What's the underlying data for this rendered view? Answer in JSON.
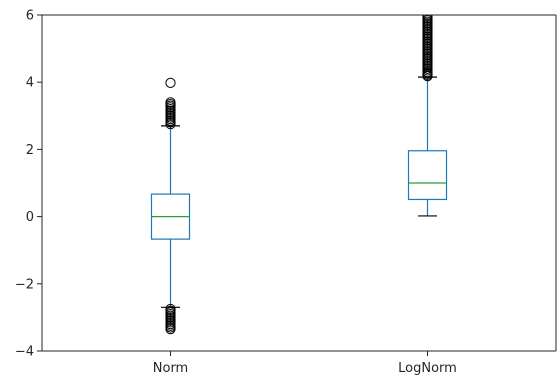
{
  "chart_data": {
    "type": "box",
    "title": "",
    "xlabel": "",
    "ylabel": "",
    "ylim": [
      -4,
      6
    ],
    "yticks": [
      -4,
      -2,
      0,
      2,
      4,
      6
    ],
    "ytick_labels": [
      "−4",
      "−2",
      "0",
      "2",
      "4",
      "6"
    ],
    "categories": [
      "Norm",
      "LogNorm"
    ],
    "boxes": [
      {
        "name": "Norm",
        "whisker_low": -2.7,
        "q1": -0.67,
        "median": 0.0,
        "q3": 0.67,
        "whisker_high": 2.7,
        "outliers": [
          -3.35,
          -3.3,
          -3.25,
          -3.2,
          -3.15,
          -3.1,
          -3.05,
          -3.0,
          -2.95,
          -2.9,
          -2.85,
          -2.8,
          -2.75,
          2.75,
          2.8,
          2.85,
          2.9,
          2.95,
          3.0,
          3.05,
          3.1,
          3.15,
          3.2,
          3.25,
          3.3,
          3.35,
          3.4,
          3.98
        ]
      },
      {
        "name": "LogNorm",
        "whisker_low": 0.02,
        "q1": 0.51,
        "median": 1.0,
        "q3": 1.96,
        "whisker_high": 4.15,
        "outliers": [
          4.18,
          4.22,
          4.26,
          4.3,
          4.35,
          4.4,
          4.45,
          4.5,
          4.55,
          4.6,
          4.65,
          4.7,
          4.75,
          4.8,
          4.85,
          4.9,
          4.95,
          5.0,
          5.05,
          5.1,
          5.15,
          5.2,
          5.25,
          5.3,
          5.35,
          5.4,
          5.45,
          5.5,
          5.55,
          5.6,
          5.65,
          5.7,
          5.75,
          5.8,
          5.85,
          5.9,
          5.95,
          6.0
        ]
      }
    ],
    "grid": false,
    "colors": {
      "box": "#1f77b4",
      "median": "#2ca02c",
      "whisker_cap": "#000000",
      "flier": "#000000",
      "axis": "#262626"
    }
  }
}
